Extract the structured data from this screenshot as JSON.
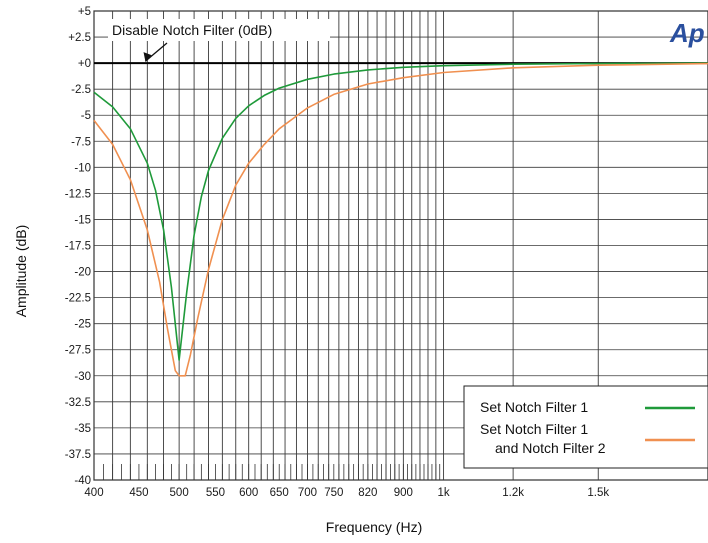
{
  "chart_data": {
    "type": "line",
    "xlabel": "Frequency (Hz)",
    "ylabel": "Amplitude (dB)",
    "xlim": [
      400,
      2000
    ],
    "ylim": [
      -40,
      5
    ],
    "x_scale": "log",
    "grid": true,
    "legend_position": "bottom-right",
    "x_ticks": [
      {
        "value": 400,
        "label": "400"
      },
      {
        "value": 450,
        "label": "450"
      },
      {
        "value": 500,
        "label": "500"
      },
      {
        "value": 550,
        "label": "550"
      },
      {
        "value": 600,
        "label": "600"
      },
      {
        "value": 650,
        "label": "650"
      },
      {
        "value": 700,
        "label": "700"
      },
      {
        "value": 750,
        "label": "750"
      },
      {
        "value": 820,
        "label": "820"
      },
      {
        "value": 900,
        "label": "900"
      },
      {
        "value": 1000,
        "label": "1k"
      },
      {
        "value": 1200,
        "label": "1.2k"
      },
      {
        "value": 1500,
        "label": "1.5k"
      }
    ],
    "y_ticks": [
      {
        "value": 5,
        "label": "+5"
      },
      {
        "value": 2.5,
        "label": "+2.5"
      },
      {
        "value": 0,
        "label": "+0"
      },
      {
        "value": -2.5,
        "label": "-2.5"
      },
      {
        "value": -5,
        "label": "-5"
      },
      {
        "value": -7.5,
        "label": "-7.5"
      },
      {
        "value": -10,
        "label": "-10"
      },
      {
        "value": -12.5,
        "label": "-12.5"
      },
      {
        "value": -15,
        "label": "-15"
      },
      {
        "value": -17.5,
        "label": "-17.5"
      },
      {
        "value": -20,
        "label": "-20"
      },
      {
        "value": -22.5,
        "label": "-22.5"
      },
      {
        "value": -25,
        "label": "-25"
      },
      {
        "value": -27.5,
        "label": "-27.5"
      },
      {
        "value": -30,
        "label": "-30"
      },
      {
        "value": -32.5,
        "label": "-32.5"
      },
      {
        "value": -35,
        "label": "-35"
      },
      {
        "value": -37.5,
        "label": "-37.5"
      },
      {
        "value": -40,
        "label": "-40"
      }
    ],
    "x_grid": [
      400,
      420,
      440,
      460,
      480,
      500,
      520,
      540,
      560,
      580,
      600,
      620,
      640,
      660,
      680,
      700,
      720,
      740,
      760,
      780,
      800,
      820,
      840,
      860,
      880,
      900,
      920,
      940,
      960,
      980,
      1000,
      1200,
      1500
    ],
    "annotation": {
      "text": "Disable Notch Filter (0dB)",
      "x": 470,
      "y": 0
    },
    "logo_text": "Ap",
    "series": [
      {
        "name": "Disable Notch Filter (0dB)",
        "color": "#000000",
        "in_legend": false,
        "points": [
          [
            400,
            0
          ],
          [
            2000,
            0
          ]
        ]
      },
      {
        "name": "Set Notch Filter 1",
        "color": "#1f9a3a",
        "in_legend": true,
        "points": [
          [
            400,
            -2.8
          ],
          [
            420,
            -4.2
          ],
          [
            440,
            -6.3
          ],
          [
            460,
            -9.6
          ],
          [
            470,
            -12.2
          ],
          [
            480,
            -16.0
          ],
          [
            490,
            -21.5
          ],
          [
            500,
            -28.5
          ],
          [
            510,
            -22.0
          ],
          [
            520,
            -16.5
          ],
          [
            530,
            -12.8
          ],
          [
            540,
            -10.3
          ],
          [
            560,
            -7.2
          ],
          [
            580,
            -5.3
          ],
          [
            600,
            -4.1
          ],
          [
            625,
            -3.1
          ],
          [
            650,
            -2.4
          ],
          [
            700,
            -1.55
          ],
          [
            750,
            -1.05
          ],
          [
            820,
            -0.65
          ],
          [
            900,
            -0.4
          ],
          [
            1000,
            -0.25
          ],
          [
            1200,
            -0.1
          ],
          [
            1500,
            -0.04
          ],
          [
            2000,
            0
          ]
        ]
      },
      {
        "name": "Set Notch Filter 1\nand Notch Filter 2",
        "color": "#f09050",
        "in_legend": true,
        "points": [
          [
            400,
            -5.5
          ],
          [
            420,
            -7.8
          ],
          [
            440,
            -11.2
          ],
          [
            460,
            -16.0
          ],
          [
            475,
            -21.0
          ],
          [
            485,
            -25.5
          ],
          [
            495,
            -29.5
          ],
          [
            500,
            -30.0
          ],
          [
            508,
            -30.0
          ],
          [
            515,
            -28.0
          ],
          [
            525,
            -24.5
          ],
          [
            540,
            -19.8
          ],
          [
            560,
            -15.0
          ],
          [
            580,
            -11.7
          ],
          [
            600,
            -9.6
          ],
          [
            625,
            -7.8
          ],
          [
            650,
            -6.3
          ],
          [
            700,
            -4.3
          ],
          [
            750,
            -3.0
          ],
          [
            820,
            -2.0
          ],
          [
            900,
            -1.4
          ],
          [
            1000,
            -0.9
          ],
          [
            1200,
            -0.45
          ],
          [
            1500,
            -0.2
          ],
          [
            2000,
            -0.05
          ]
        ]
      }
    ]
  }
}
